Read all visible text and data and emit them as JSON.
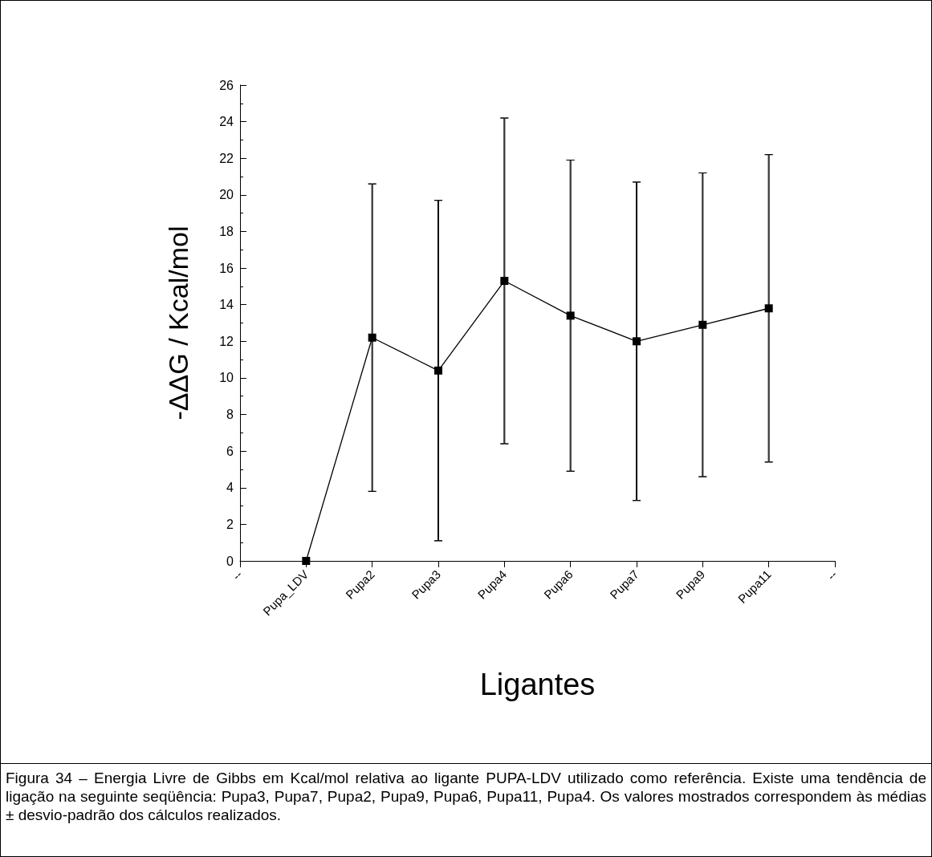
{
  "chart_data": {
    "type": "line",
    "xlabel": "Ligantes",
    "ylabel": "-ΔΔG / Kcal/mol",
    "categories": [
      "--",
      "Pupa_LDV",
      "Pupa2",
      "Pupa3",
      "Pupa4",
      "Pupa6",
      "Pupa7",
      "Pupa9",
      "Pupa11",
      "--"
    ],
    "series": [
      {
        "color": "#000000",
        "values": [
          null,
          0,
          12.2,
          10.4,
          15.3,
          13.4,
          12.0,
          12.9,
          13.8,
          null
        ],
        "errors": [
          null,
          null,
          [
            3.8,
            20.6
          ],
          [
            1.1,
            19.7
          ],
          [
            6.4,
            24.2
          ],
          [
            4.9,
            21.9
          ],
          [
            3.3,
            20.7
          ],
          [
            4.6,
            21.2
          ],
          [
            5.4,
            22.2
          ],
          null
        ]
      }
    ],
    "ylim": [
      0,
      26
    ],
    "yticks": [
      0,
      2,
      4,
      6,
      8,
      10,
      12,
      14,
      16,
      18,
      20,
      22,
      24,
      26
    ],
    "marker": "square",
    "line_style": "solid",
    "grid": false,
    "annotations": [
      "Figura 34 – Energia Livre de Gibbs em Kcal/mol relativa ao ligante PUPA-LDV utilizado como referência. Existe uma tendência de ligação na seguinte seqüência: Pupa3, Pupa7, Pupa2, Pupa9, Pupa6, Pupa11, Pupa4. Os valores mostrados correspondem às médias ± desvio-padrão dos cálculos realizados."
    ]
  }
}
